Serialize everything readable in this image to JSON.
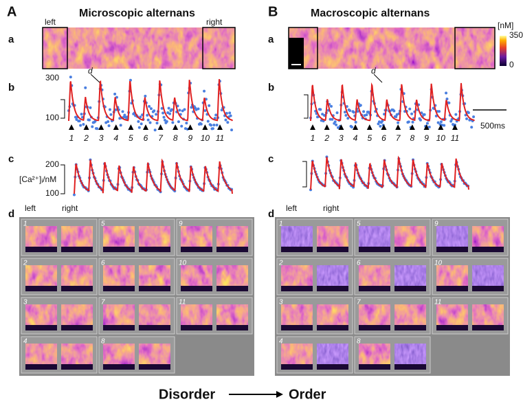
{
  "panels": [
    {
      "letter": "A",
      "title": "Microscopic alternans",
      "a": {
        "label": "a",
        "left": "left",
        "right": "right"
      },
      "b": {
        "label": "b",
        "yticks": [
          300,
          100
        ],
        "marker": "d",
        "beats": [
          1,
          2,
          3,
          4,
          5,
          6,
          7,
          8,
          9,
          10,
          11
        ]
      },
      "c": {
        "label": "c",
        "yticks": [
          200,
          100
        ],
        "ylabel": "[Ca²⁺]ᵢ/nM"
      },
      "d": {
        "label": "d",
        "left": "left",
        "right": "right",
        "tiles": [
          1,
          2,
          3,
          4,
          5,
          6,
          7,
          8,
          9,
          10,
          11
        ]
      }
    },
    {
      "letter": "B",
      "title": "Macroscopic alternans",
      "a": {
        "label": "a",
        "unit": "[nM]",
        "cmax": 350,
        "cmin": 0
      },
      "b": {
        "label": "b",
        "marker": "d",
        "beats": [
          1,
          2,
          3,
          4,
          5,
          6,
          7,
          8,
          9,
          10,
          11
        ],
        "scale": "500ms"
      },
      "c": {
        "label": "c"
      },
      "d": {
        "label": "d",
        "left": "left",
        "right": "right",
        "tiles": [
          1,
          2,
          3,
          4,
          5,
          6,
          7,
          8,
          9,
          10,
          11
        ]
      }
    }
  ],
  "footer": {
    "from": "Disorder",
    "to": "Order"
  }
}
